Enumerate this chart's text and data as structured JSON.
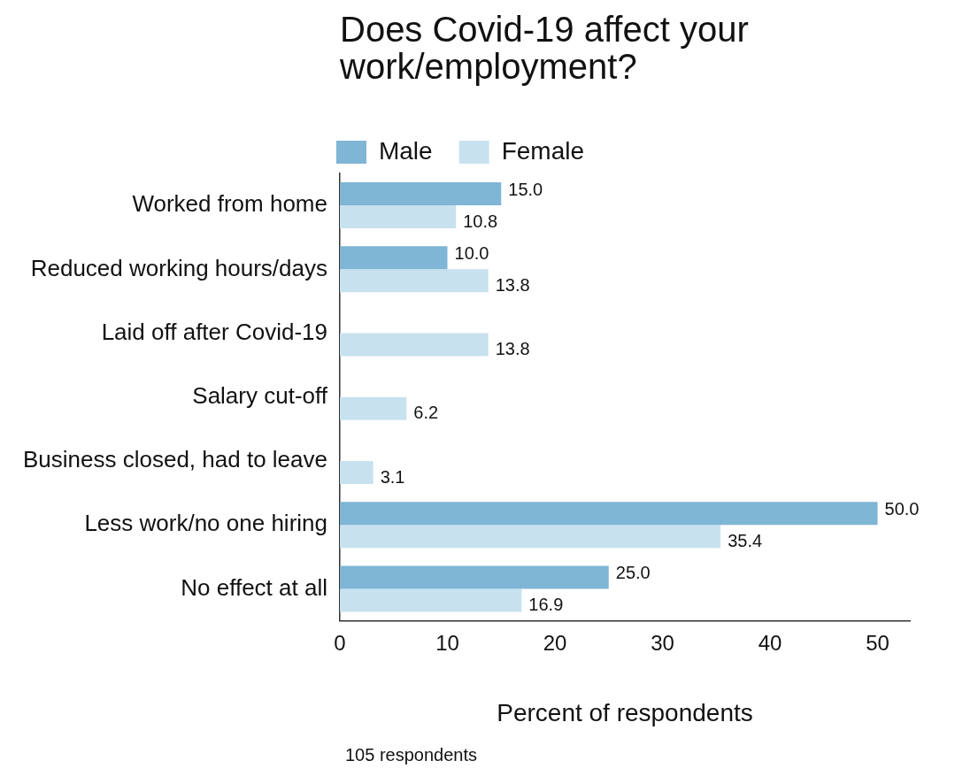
{
  "chart_data": {
    "type": "bar",
    "orientation": "horizontal",
    "title": "Does Covid-19 affect your work/employment?",
    "xlabel": "Percent of respondents",
    "annotations": [
      "105 respondents"
    ],
    "categories": [
      "Worked from home",
      "Reduced working hours/days",
      "Laid off after Covid-19",
      "Salary cut-off",
      "Business closed, had to leave",
      "Less work/no one hiring",
      "No effect at all"
    ],
    "series": [
      {
        "name": "Male",
        "color": "#7fb5d5",
        "values": [
          15.0,
          10.0,
          null,
          null,
          null,
          50.0,
          25.0
        ],
        "value_labels": [
          "15.0",
          "10.0",
          null,
          null,
          null,
          "50.0",
          "25.0"
        ]
      },
      {
        "name": "Female",
        "color": "#c8e1ef",
        "values": [
          10.8,
          13.8,
          13.8,
          6.2,
          3.1,
          35.4,
          16.9
        ],
        "value_labels": [
          "10.8",
          "13.8",
          "13.8",
          "6.2",
          "3.1",
          "35.4",
          "16.9"
        ]
      }
    ],
    "xlim": [
      0,
      53
    ],
    "xticks": [
      0,
      10,
      20,
      30,
      40,
      50
    ],
    "grid": false,
    "legend": "top"
  }
}
